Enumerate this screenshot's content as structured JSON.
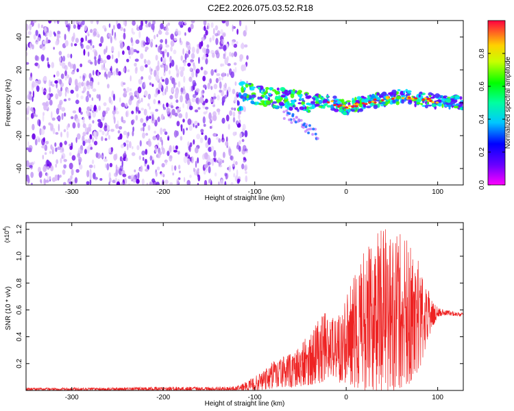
{
  "title": "C2E2.2026.075.03.52.R18",
  "chart_data": [
    {
      "type": "heatmap",
      "xlabel": "Height of straight line (km)",
      "ylabel": "Frequency (Hz)",
      "xlim": [
        -350,
        128
      ],
      "ylim": [
        -50,
        50
      ],
      "xticks": [
        -300,
        -200,
        -100,
        0,
        100
      ],
      "yticks": [
        -40,
        -20,
        0,
        20,
        40
      ],
      "noise_region_km": [
        -350,
        -112
      ],
      "signal_band_center_hz": [
        [
          -115,
          8
        ],
        [
          -100,
          5
        ],
        [
          -80,
          3
        ],
        [
          -60,
          2
        ],
        [
          -40,
          0
        ],
        [
          -20,
          1
        ],
        [
          0,
          -3
        ],
        [
          20,
          0
        ],
        [
          40,
          2
        ],
        [
          60,
          4
        ],
        [
          80,
          2
        ],
        [
          100,
          1
        ],
        [
          128,
          0
        ]
      ],
      "colorbar": {
        "label": "Normalized spectral amplitude",
        "range": [
          0.0,
          1.0
        ],
        "ticks": [
          0.0,
          0.2,
          0.4,
          0.6,
          0.8
        ]
      }
    },
    {
      "type": "line",
      "xlabel": "Height of straight line (km)",
      "ylabel": "SNR (10 * v/v)",
      "multiplier_label": "(x10",
      "multiplier_exp": "4",
      "multiplier_close": ")",
      "xlim": [
        -350,
        128
      ],
      "ylim": [
        0,
        1.25
      ],
      "xticks": [
        -300,
        -200,
        -100,
        0,
        100
      ],
      "yticks": [
        0.2,
        0.4,
        0.6,
        0.8,
        1.0,
        1.2
      ],
      "series": [
        {
          "name": "SNR",
          "color": "#ee2222",
          "envelope_x": [
            -350,
            -120,
            -100,
            -80,
            -60,
            -40,
            -30,
            -20,
            -10,
            0,
            10,
            20,
            30,
            40,
            50,
            60,
            70,
            80,
            90,
            100,
            110,
            128
          ],
          "envelope_max": [
            0.02,
            0.03,
            0.1,
            0.22,
            0.28,
            0.42,
            0.55,
            0.6,
            0.52,
            0.72,
            0.9,
            1.05,
            1.15,
            1.2,
            1.22,
            1.18,
            1.1,
            0.95,
            0.75,
            0.62,
            0.6,
            0.58
          ],
          "envelope_min": [
            0.0,
            0.0,
            0.0,
            0.01,
            0.02,
            0.04,
            0.05,
            0.08,
            0.06,
            0.05,
            0.02,
            0.0,
            0.0,
            0.0,
            0.0,
            0.01,
            0.05,
            0.15,
            0.4,
            0.55,
            0.56,
            0.55
          ]
        }
      ]
    }
  ]
}
